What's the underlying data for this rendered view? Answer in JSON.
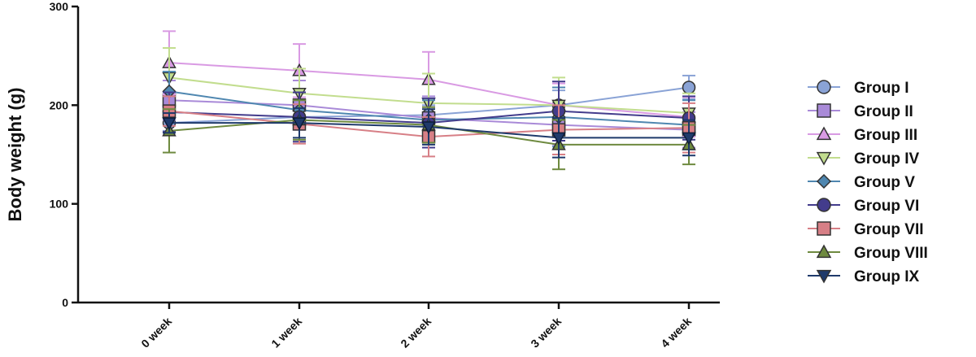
{
  "chart_data": {
    "type": "line",
    "title": "",
    "xlabel": "",
    "ylabel": "Body weight (g)",
    "ylim": [
      0,
      300
    ],
    "yticks": [
      0,
      100,
      200,
      300
    ],
    "categories": [
      "0 week",
      "1 week",
      "2 week",
      "3 week",
      "4 week"
    ],
    "legend_position": "right",
    "grid": false,
    "series": [
      {
        "name": "Group I",
        "marker": "circle",
        "color": "#8aa3d6",
        "values": [
          182,
          188,
          190,
          200,
          218
        ],
        "errors": [
          8,
          10,
          10,
          15,
          12
        ]
      },
      {
        "name": "Group II",
        "marker": "square",
        "color": "#a98ad8",
        "values": [
          205,
          200,
          187,
          180,
          175
        ],
        "errors": [
          20,
          25,
          22,
          20,
          18
        ]
      },
      {
        "name": "Group III",
        "marker": "triangle-up",
        "color": "#d99ae3",
        "values": [
          243,
          235,
          226,
          200,
          188
        ],
        "errors": [
          32,
          27,
          28,
          22,
          20
        ]
      },
      {
        "name": "Group IV",
        "marker": "triangle-down",
        "color": "#c2dd8e",
        "values": [
          228,
          212,
          202,
          200,
          192
        ],
        "errors": [
          30,
          25,
          30,
          28,
          20
        ]
      },
      {
        "name": "Group V",
        "marker": "diamond",
        "color": "#4f87b0",
        "values": [
          214,
          195,
          185,
          188,
          180
        ],
        "errors": [
          20,
          18,
          20,
          30,
          25
        ]
      },
      {
        "name": "Group VI",
        "marker": "circle",
        "color": "#433c8c",
        "values": [
          193,
          188,
          182,
          194,
          187
        ],
        "errors": [
          20,
          25,
          25,
          30,
          22
        ]
      },
      {
        "name": "Group VII",
        "marker": "square",
        "color": "#d77f86",
        "values": [
          194,
          181,
          168,
          175,
          177
        ],
        "errors": [
          15,
          20,
          20,
          25,
          25
        ]
      },
      {
        "name": "Group VIII",
        "marker": "triangle-up",
        "color": "#6e8a3f",
        "values": [
          174,
          185,
          180,
          160,
          160
        ],
        "errors": [
          22,
          20,
          18,
          25,
          20
        ]
      },
      {
        "name": "Group IX",
        "marker": "triangle-down",
        "color": "#1f3a6b",
        "values": [
          182,
          182,
          178,
          167,
          167
        ],
        "errors": [
          10,
          15,
          18,
          20,
          18
        ]
      }
    ]
  }
}
